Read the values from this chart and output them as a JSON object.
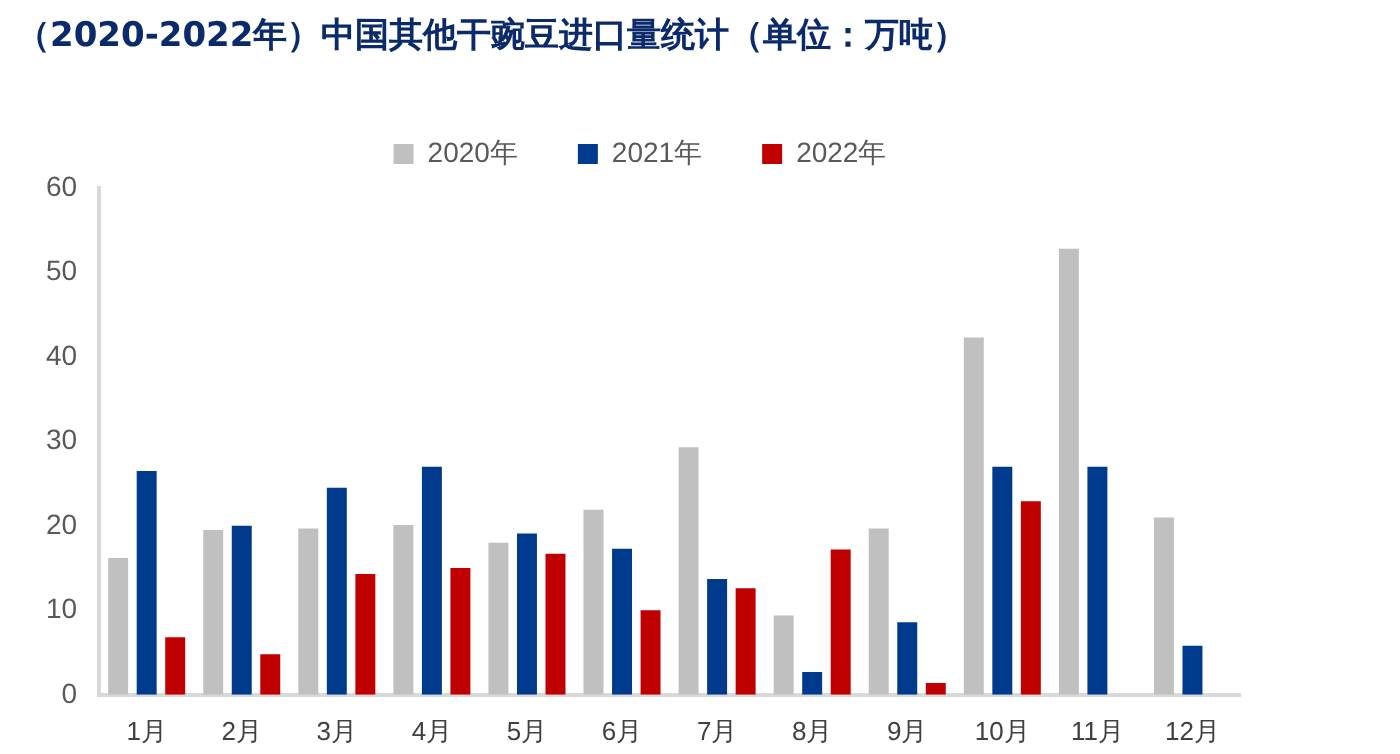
{
  "chart_data": {
    "type": "bar",
    "title": "（2020-2022年）中国其他干豌豆进口量统计（单位：万吨）",
    "categories": [
      "1月",
      "2月",
      "3月",
      "4月",
      "5月",
      "6月",
      "7月",
      "8月",
      "9月",
      "10月",
      "11月",
      "12月"
    ],
    "series": [
      {
        "name": "2020年",
        "color": "#c0c0c0",
        "values": [
          16.2,
          19.5,
          19.7,
          20.1,
          18,
          21.9,
          29.3,
          9.4,
          19.7,
          42.3,
          52.8,
          21
        ]
      },
      {
        "name": "2021年",
        "color": "#003a8c",
        "values": [
          26.5,
          20,
          24.5,
          27,
          19.1,
          17.3,
          13.7,
          2.7,
          8.6,
          27,
          27,
          5.8
        ]
      },
      {
        "name": "2022年",
        "color": "#c00000",
        "values": [
          6.8,
          4.8,
          14.3,
          15,
          16.7,
          10,
          12.6,
          17.2,
          1.4,
          22.9,
          null,
          null
        ]
      }
    ],
    "ylim": [
      0,
      60
    ],
    "yticks": [
      0,
      10,
      20,
      30,
      40,
      50,
      60
    ],
    "grid": false,
    "legend": "top"
  }
}
